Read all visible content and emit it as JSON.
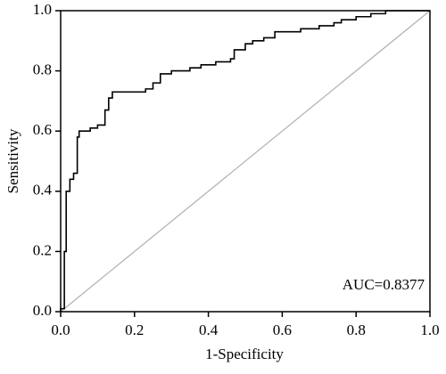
{
  "chart_data": {
    "type": "line",
    "xlabel": "1-Specificity",
    "ylabel": "Sensitivity",
    "annotation": "AUC=0.8377",
    "xlim": [
      0,
      1
    ],
    "ylim": [
      0,
      1
    ],
    "xticks": [
      {
        "value": 0,
        "label": "0.0"
      },
      0.2,
      0.4,
      0.6,
      0.8,
      {
        "value": 1,
        "label": "1.0"
      }
    ],
    "yticks": [
      {
        "value": 0,
        "label": "0.0"
      },
      0.2,
      0.4,
      0.6,
      0.8,
      {
        "value": 1,
        "label": "1.0"
      }
    ],
    "grid": false,
    "series": [
      {
        "color": "#000000",
        "x": [
          0,
          0,
          0.01,
          0.01,
          0.015,
          0.015,
          0.025,
          0.025,
          0.035,
          0.035,
          0.045,
          0.045,
          0.05,
          0.05,
          0.08,
          0.08,
          0.1,
          0.1,
          0.12,
          0.12,
          0.13,
          0.13,
          0.14,
          0.14,
          0.23,
          0.23,
          0.25,
          0.25,
          0.27,
          0.27,
          0.3,
          0.3,
          0.35,
          0.35,
          0.38,
          0.38,
          0.42,
          0.42,
          0.46,
          0.46,
          0.47,
          0.47,
          0.5,
          0.5,
          0.52,
          0.52,
          0.55,
          0.55,
          0.58,
          0.58,
          0.65,
          0.65,
          0.7,
          0.7,
          0.74,
          0.74,
          0.76,
          0.76,
          0.8,
          0.8,
          0.84,
          0.84,
          0.88,
          0.88,
          1
        ],
        "values": [
          0,
          0.01,
          0.01,
          0.2,
          0.2,
          0.4,
          0.4,
          0.44,
          0.44,
          0.46,
          0.46,
          0.58,
          0.58,
          0.6,
          0.6,
          0.61,
          0.61,
          0.62,
          0.62,
          0.67,
          0.67,
          0.71,
          0.71,
          0.73,
          0.73,
          0.74,
          0.74,
          0.76,
          0.76,
          0.79,
          0.79,
          0.8,
          0.8,
          0.81,
          0.81,
          0.82,
          0.82,
          0.83,
          0.83,
          0.84,
          0.84,
          0.87,
          0.87,
          0.89,
          0.89,
          0.9,
          0.9,
          0.91,
          0.91,
          0.93,
          0.93,
          0.94,
          0.94,
          0.95,
          0.95,
          0.96,
          0.96,
          0.97,
          0.97,
          0.98,
          0.98,
          0.99,
          0.99,
          1,
          1
        ]
      },
      {
        "color": "#b0b0b0",
        "x": [
          0,
          1
        ],
        "values": [
          0,
          1
        ]
      }
    ]
  }
}
